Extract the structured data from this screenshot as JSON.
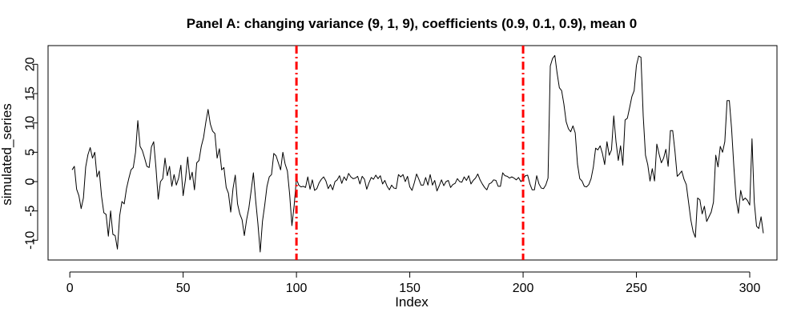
{
  "chart_data": {
    "type": "line",
    "title": "Panel A: changing variance (9, 1, 9), coefficients (0.9, 0.1, 0.9), mean 0",
    "xlabel": "Index",
    "ylabel": "simulated_series",
    "xlim": [
      1,
      300
    ],
    "ylim": [
      -12,
      22
    ],
    "x_ticks": [
      0,
      50,
      100,
      150,
      200,
      250,
      300
    ],
    "x_tick_labels": [
      "0",
      "50",
      "100",
      "150",
      "200",
      "250",
      "300"
    ],
    "y_ticks": [
      -10,
      -5,
      0,
      5,
      10,
      15,
      20
    ],
    "y_tick_labels": [
      "-10",
      "-5",
      "0",
      "5",
      "10",
      "15",
      "20"
    ],
    "grid": false,
    "legend": "none",
    "line_color": "#000000",
    "vlines": [
      {
        "x": 100,
        "color": "#ff0000",
        "style": "dashdot"
      },
      {
        "x": 200,
        "color": "#ff0000",
        "style": "dashdot"
      }
    ],
    "series": [
      {
        "x_start": 1,
        "x_step": 1,
        "values": [
          2.0,
          2.6,
          -1.3,
          -2.4,
          -4.6,
          -2.8,
          2.5,
          4.6,
          5.8,
          4.0,
          5.0,
          0.8,
          1.8,
          -2.5,
          -5.3,
          -5.6,
          -9.3,
          -5.0,
          -9.0,
          -9.2,
          -11.5,
          -5.8,
          -3.4,
          -3.8,
          -1.2,
          0.5,
          2.0,
          2.4,
          5.0,
          10.4,
          6.0,
          5.3,
          4.0,
          2.6,
          2.4,
          5.9,
          6.8,
          2.4,
          -3.0,
          0.0,
          0.5,
          4.0,
          1.0,
          2.6,
          -0.8,
          1.2,
          -0.6,
          0.6,
          2.8,
          -2.4,
          0.3,
          4.2,
          0.3,
          1.6,
          -1.4,
          3.2,
          3.6,
          6.0,
          7.5,
          10.1,
          12.3,
          9.8,
          8.6,
          8.2,
          4.0,
          5.6,
          2.0,
          2.4,
          -1.0,
          -2.0,
          -5.2,
          -1.2,
          1.1,
          -3.8,
          -5.5,
          -6.5,
          -9.2,
          -6.5,
          -4.5,
          -1.6,
          1.5,
          -3.2,
          -7.2,
          -12.0,
          -6.8,
          -4.0,
          -0.8,
          0.8,
          1.2,
          4.8,
          4.4,
          3.2,
          2.0,
          5.0,
          3.0,
          1.8,
          -2.2,
          -7.5,
          -4.0,
          0.5,
          -0.6,
          -0.9,
          -0.8,
          -1.0,
          0.8,
          -1.3,
          0.3,
          -1.5,
          -1.2,
          -0.2,
          0.4,
          0.8,
          0.1,
          -1.2,
          -0.5,
          -1.4,
          0.0,
          0.3,
          1.0,
          -0.3,
          0.8,
          0.2,
          1.4,
          0.8,
          0.5,
          0.6,
          0.9,
          -0.4,
          0.9,
          0.4,
          -1.3,
          -0.2,
          0.7,
          0.4,
          1.1,
          0.5,
          1.0,
          -0.4,
          0.2,
          -0.8,
          -1.4,
          -0.6,
          -1.1,
          -1.2,
          1.2,
          0.8,
          1.2,
          0.0,
          0.9,
          -0.9,
          -1.5,
          -0.2,
          1.3,
          0.4,
          -0.6,
          -0.6,
          0.7,
          -0.6,
          1.2,
          -0.6,
          0.2,
          -1.6,
          -0.7,
          0.3,
          -0.7,
          0.0,
          0.2,
          -1.0,
          -0.5,
          -0.3,
          0.5,
          0.0,
          -0.1,
          0.8,
          0.2,
          1.0,
          -0.4,
          0.2,
          0.6,
          1.3,
          0.3,
          -0.4,
          -1.0,
          -1.4,
          -0.4,
          -0.2,
          0.3,
          0.2,
          -0.8,
          -0.8,
          1.5,
          1.0,
          0.9,
          0.6,
          0.8,
          0.6,
          0.3,
          0.7,
          0.0,
          0.4,
          1.0,
          1.1,
          -0.4,
          -1.4,
          -1.4,
          1.0,
          -0.4,
          -1.1,
          -1.2,
          -0.6,
          0.6,
          19.7,
          21.0,
          21.5,
          18.5,
          16.0,
          15.5,
          13.2,
          10.2,
          9.0,
          8.5,
          9.5,
          8.3,
          3.0,
          0.5,
          0.1,
          -0.8,
          -0.9,
          -0.5,
          0.5,
          2.5,
          5.7,
          5.4,
          6.1,
          4.8,
          2.9,
          6.8,
          4.5,
          5.4,
          11.2,
          6.8,
          3.6,
          6.1,
          2.8,
          10.5,
          10.8,
          12.6,
          14.5,
          15.5,
          19.8,
          21.4,
          21.2,
          11.2,
          4.5,
          2.9,
          0.1,
          2.2,
          0.1,
          6.4,
          4.7,
          3.2,
          4.0,
          5.5,
          2.6,
          8.7,
          8.7,
          5.2,
          0.9,
          1.3,
          1.8,
          0.4,
          -0.5,
          -3.5,
          -6.5,
          -8.5,
          -9.5,
          -2.8,
          -3.1,
          -5.5,
          -4.2,
          -6.8,
          -6.0,
          -5.2,
          -3.5,
          4.5,
          2.5,
          6.0,
          5.0,
          6.8,
          13.8,
          13.8,
          9.0,
          2.5,
          -3.0,
          -5.4,
          -1.5,
          -3.2,
          -2.8,
          -3.2,
          -4.0,
          7.3,
          -3.5,
          -7.6,
          -8.0,
          -6.0,
          -8.8
        ]
      }
    ]
  }
}
